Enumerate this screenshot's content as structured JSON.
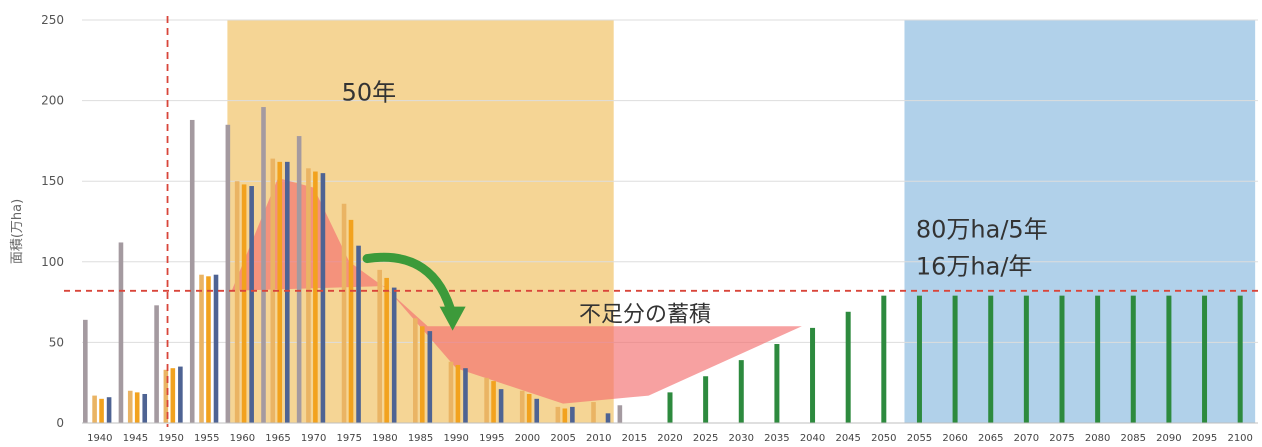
{
  "chart_data": {
    "type": "bar",
    "ylabel": "面積(万ha)",
    "ylim": [
      0,
      250
    ],
    "yticks": [
      0,
      50,
      100,
      150,
      200,
      250
    ],
    "grid": true,
    "categories": [
      "1940",
      "1945",
      "1950",
      "1955",
      "1960",
      "1965",
      "1970",
      "1975",
      "1980",
      "1985",
      "1990",
      "1995",
      "2000",
      "2005",
      "2010",
      "2015",
      "2020",
      "2025",
      "2030",
      "2035",
      "2040",
      "2045",
      "2050",
      "2055",
      "2060",
      "2065",
      "2070",
      "2075",
      "2080",
      "2085",
      "2090",
      "2095",
      "2100"
    ],
    "series": [
      {
        "color": "#a49aa0",
        "values": [
          64,
          112,
          73,
          188,
          185,
          196,
          178,
          null,
          null,
          null,
          null,
          null,
          null,
          null,
          null,
          11,
          null,
          null,
          null,
          null,
          null,
          null,
          null,
          null,
          null,
          null,
          null,
          null,
          null,
          null,
          null,
          null,
          null
        ]
      },
      {
        "color": "#eab464",
        "values": [
          17,
          20,
          33,
          92,
          150,
          164,
          158,
          136,
          95,
          65,
          38,
          28,
          20,
          10,
          13,
          null,
          null,
          null,
          null,
          null,
          null,
          null,
          null,
          null,
          null,
          null,
          null,
          null,
          null,
          null,
          null,
          null,
          null
        ]
      },
      {
        "color": "#f2a21e",
        "values": [
          15,
          19,
          34,
          91,
          148,
          162,
          156,
          126,
          90,
          60,
          36,
          26,
          18,
          9,
          null,
          null,
          null,
          null,
          null,
          null,
          null,
          null,
          null,
          null,
          null,
          null,
          null,
          null,
          null,
          null,
          null,
          null,
          null
        ]
      },
      {
        "color": "#4e6393",
        "values": [
          16,
          18,
          35,
          92,
          147,
          162,
          155,
          110,
          84,
          57,
          34,
          21,
          15,
          10,
          6,
          null,
          null,
          null,
          null,
          null,
          null,
          null,
          null,
          null,
          null,
          null,
          null,
          null,
          null,
          null,
          null,
          null,
          null
        ]
      },
      {
        "color": "#2d8a3e",
        "values": [
          null,
          null,
          null,
          null,
          null,
          null,
          null,
          null,
          null,
          null,
          null,
          null,
          null,
          null,
          null,
          null,
          19,
          29,
          39,
          49,
          59,
          69,
          79,
          79,
          79,
          79,
          79,
          79,
          79,
          79,
          79,
          79,
          79
        ]
      }
    ],
    "reference_line": {
      "y": 82,
      "color": "#d9453a"
    },
    "vertical_line": {
      "x": "1950",
      "color": "#d9453a"
    },
    "shaded_regions": [
      {
        "from": "1960",
        "to": "2010",
        "color": "#f4d08a",
        "label": "50年"
      },
      {
        "from": "2055",
        "to": "2100",
        "color": "#a9cce8",
        "label_line1": "80万ha/5年",
        "label_line2": "16万ha/年"
      }
    ],
    "accumulation_label": "不足分の蓄積"
  }
}
